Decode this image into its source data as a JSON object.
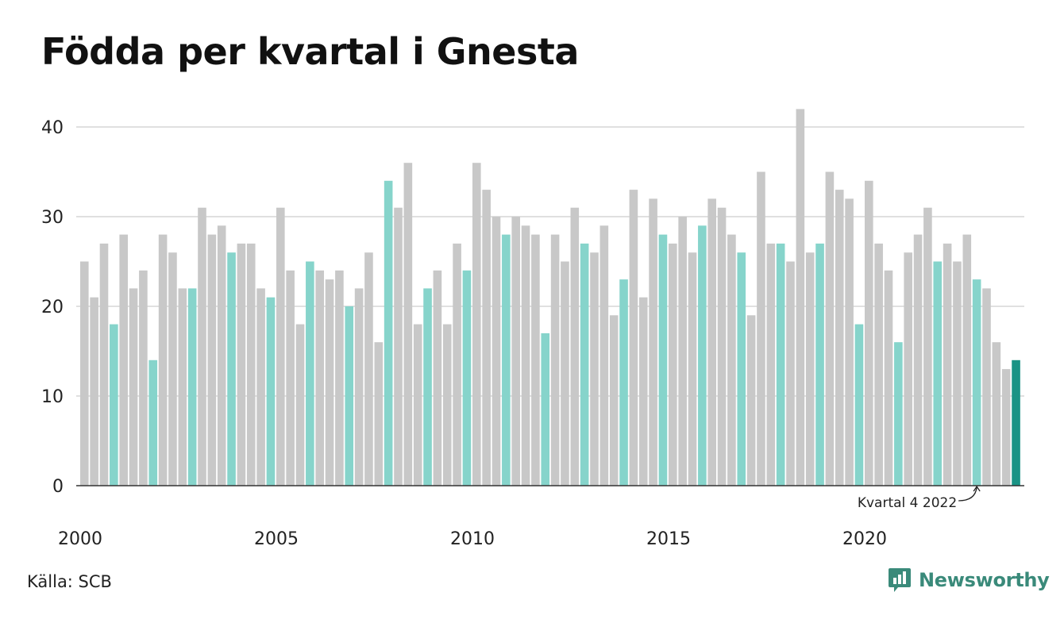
{
  "title": "Födda per kvartal i Gnesta",
  "source": "Källa: SCB",
  "brand": {
    "name": "Newsworthy",
    "icon": "newsworthy-logo-icon"
  },
  "colors": {
    "bar_default": "#c8c8c8",
    "bar_q4": "#86d4cb",
    "bar_latest": "#1a9385",
    "grid": "#e0e0e0",
    "brand": "#3a8a7a"
  },
  "annotation": {
    "text": "Kvartal 4 2022"
  },
  "chart_data": {
    "type": "bar",
    "x_tick_labels": [
      "2000",
      "2005",
      "2010",
      "2015",
      "2020"
    ],
    "y_ticks": [
      0,
      10,
      20,
      30,
      40
    ],
    "ylim": [
      0,
      44
    ],
    "grid": true,
    "xlabel": "",
    "ylabel": "",
    "highlight": "fourth quarter of each year",
    "series": [
      {
        "values": [
          25,
          21,
          27,
          18,
          28,
          22,
          24,
          14,
          28,
          26,
          22,
          22,
          31,
          28,
          29,
          26,
          27,
          27,
          22,
          21,
          31,
          24,
          18,
          25,
          24,
          23,
          24,
          20,
          22,
          26,
          16,
          34,
          31,
          36,
          18,
          22,
          24,
          18,
          27,
          24,
          36,
          33,
          30,
          28,
          30,
          29,
          28,
          17,
          28,
          25,
          31,
          27,
          26,
          29,
          19,
          23,
          33,
          21,
          32,
          28,
          27,
          30,
          26,
          29,
          32,
          31,
          28,
          26,
          19,
          35,
          27,
          27,
          25,
          42,
          26,
          27,
          35,
          33,
          32,
          18,
          34,
          27,
          24,
          16,
          26,
          28,
          31,
          25,
          27,
          25,
          28,
          23,
          22,
          16,
          13,
          14
        ]
      }
    ]
  }
}
